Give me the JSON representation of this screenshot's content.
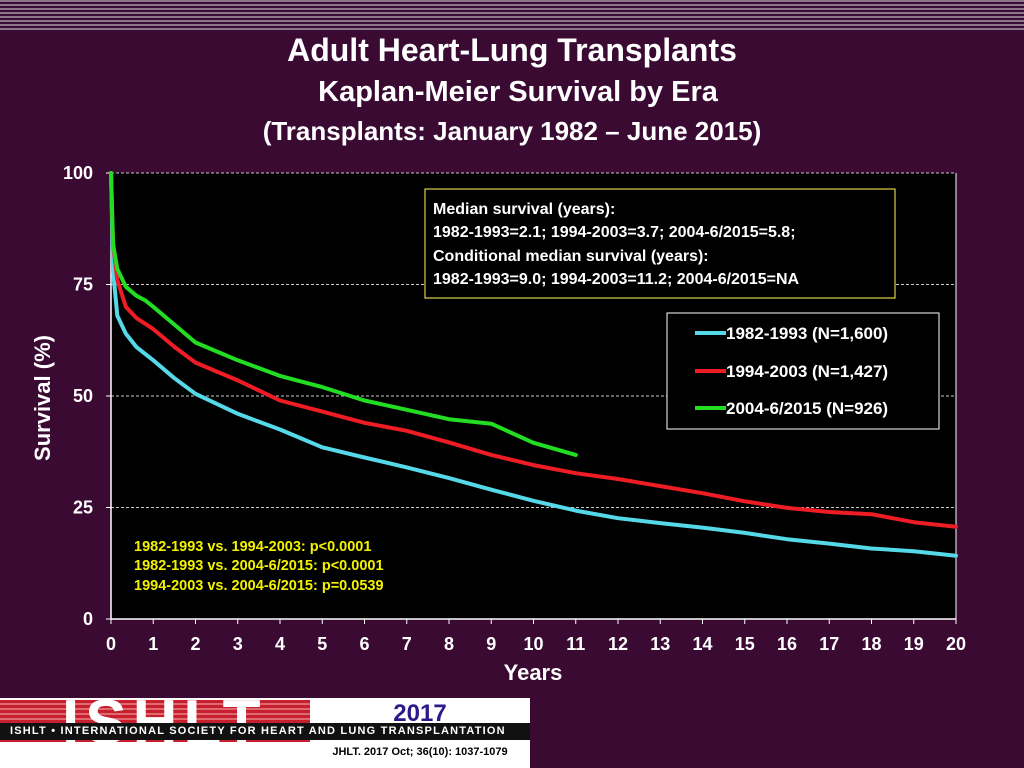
{
  "header": {
    "title": "Adult Heart-Lung Transplants",
    "subtitle": "Kaplan-Meier Survival by Era",
    "subtitle2": "(Transplants: January 1982 – June 2015)"
  },
  "median_box": {
    "lines": [
      "Median survival (years):",
      "1982-1993=2.1; 1994-2003=3.7; 2004-6/2015=5.8;",
      "Conditional median survival (years):",
      "1982-1993=9.0; 1994-2003=11.2; 2004-6/2015=NA"
    ],
    "border_color": "#d8d24a"
  },
  "pvalues": [
    "1982-1993 vs. 1994-2003: p<0.0001",
    "1982-1993 vs. 2004-6/2015: p<0.0001",
    "1994-2003 vs. 2004-6/2015: p=0.0539"
  ],
  "chart_data": {
    "type": "line",
    "xlabel": "Years",
    "ylabel": "Survival (%)",
    "xlim": [
      0,
      20
    ],
    "ylim": [
      0,
      100
    ],
    "x_ticks": [
      0,
      1,
      2,
      3,
      4,
      5,
      6,
      7,
      8,
      9,
      10,
      11,
      12,
      13,
      14,
      15,
      16,
      17,
      18,
      19,
      20
    ],
    "y_ticks": [
      0,
      25,
      50,
      75,
      100
    ],
    "grid": "horizontal dashed",
    "legend_position": "right",
    "series": [
      {
        "name": "1982-1993 (N=1,600)",
        "color": "#55d8e8",
        "x": [
          0,
          0.05,
          0.15,
          0.35,
          0.6,
          1,
          1.5,
          2,
          3,
          4,
          5,
          6,
          7,
          8,
          9,
          10,
          11,
          12,
          13,
          14,
          15,
          16,
          17,
          18,
          19,
          20
        ],
        "y": [
          100,
          78,
          68,
          64,
          61,
          58,
          54,
          50.5,
          46,
          42.5,
          38.5,
          36.2,
          34,
          31.6,
          29,
          26.5,
          24.3,
          22.6,
          21.5,
          20.5,
          19.3,
          17.9,
          16.9,
          15.8,
          15.2,
          14.2
        ]
      },
      {
        "name": "1994-2003 (N=1,427)",
        "color": "#ee1c24",
        "x": [
          0,
          0.05,
          0.15,
          0.35,
          0.6,
          1,
          1.5,
          2,
          3,
          4,
          5,
          6,
          7,
          8,
          9,
          10,
          11,
          12,
          13,
          14,
          15,
          16,
          17,
          18,
          19,
          20
        ],
        "y": [
          100,
          84,
          76,
          70,
          67.5,
          65,
          61,
          57.5,
          53.5,
          49,
          46.5,
          44,
          42.2,
          39.6,
          36.8,
          34.5,
          32.7,
          31.4,
          29.8,
          28.2,
          26.4,
          24.9,
          24,
          23.5,
          21.7,
          20.7
        ]
      },
      {
        "name": "2004-6/2015 (N=926)",
        "color": "#22dd22",
        "x": [
          0,
          0.05,
          0.15,
          0.35,
          0.6,
          0.8,
          1,
          1.5,
          2,
          3,
          4,
          5,
          6,
          7,
          8,
          9,
          10,
          11
        ],
        "y": [
          100,
          84,
          78.5,
          74.5,
          72.5,
          71.5,
          70,
          66,
          62,
          58,
          54.5,
          52,
          49,
          46.9,
          44.8,
          43.8,
          39.5,
          36.8
        ]
      }
    ]
  },
  "footer": {
    "logo_text": "ISHLT",
    "society": "ISHLT • INTERNATIONAL SOCIETY FOR HEART AND LUNG TRANSPLANTATION",
    "year": "2017",
    "citation": "JHLT. 2017 Oct; 36(10): 1037-1079"
  }
}
